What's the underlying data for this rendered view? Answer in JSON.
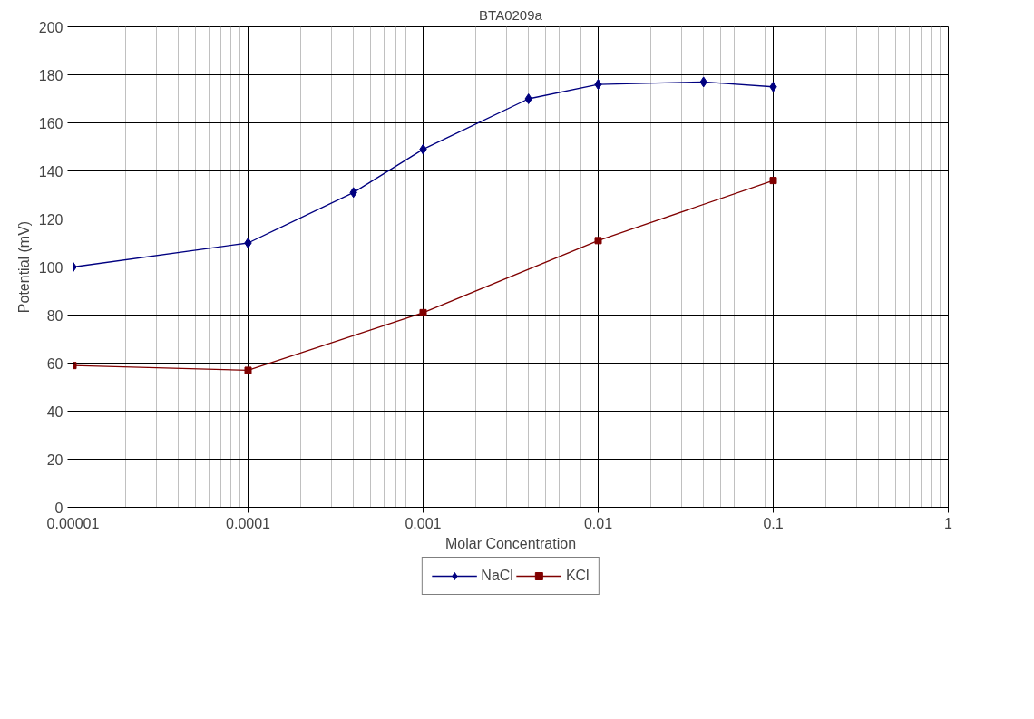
{
  "chart_data": {
    "type": "line",
    "title": "BTA0209a",
    "xlabel": "Molar Concentration",
    "ylabel": "Potential (mV)",
    "log": "x",
    "grid": true,
    "legend": "bottom",
    "xlim": [
      1e-05,
      1
    ],
    "xticks": [
      {
        "value": 1e-05,
        "label": "0.00001"
      },
      {
        "value": 0.0001,
        "label": "0.0001"
      },
      {
        "value": 0.001,
        "label": "0.001"
      },
      {
        "value": 0.01,
        "label": "0.01"
      },
      {
        "value": 0.1,
        "label": "0.1"
      },
      {
        "value": 1,
        "label": "1"
      }
    ],
    "ylim": [
      0,
      200
    ],
    "yticks": [
      0,
      20,
      40,
      60,
      80,
      100,
      120,
      140,
      160,
      180,
      200
    ],
    "series": [
      {
        "name": "NaCl",
        "color": "#000080",
        "marker": "diamond",
        "x": [
          1e-05,
          0.0001,
          0.0004,
          0.001,
          0.004,
          0.01,
          0.04,
          0.1
        ],
        "values": [
          100,
          110,
          131,
          149,
          170,
          176,
          177,
          175
        ]
      },
      {
        "name": "KCl",
        "color": "#800000",
        "marker": "square",
        "x": [
          1e-05,
          0.0001,
          0.001,
          0.01,
          0.1
        ],
        "values": [
          59,
          57,
          81,
          111,
          136
        ]
      }
    ]
  }
}
